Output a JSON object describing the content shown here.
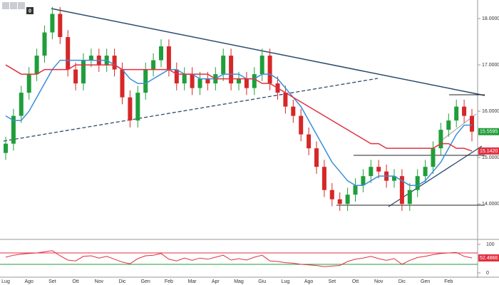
{
  "chart_data": {
    "type": "candlestick",
    "toolbar_badge": "0",
    "categories": [
      "Lug",
      null,
      null,
      "Ago",
      null,
      null,
      "Set",
      null,
      null,
      "Ott",
      null,
      null,
      "Nov",
      null,
      null,
      "Dic",
      null,
      null,
      "Gen",
      null,
      null,
      "Feb",
      null,
      null,
      "Mar",
      null,
      null,
      "Apr",
      null,
      null,
      "Mag",
      null,
      null,
      "Giu",
      null,
      null,
      "Lug",
      null,
      null,
      "Ago",
      null,
      null,
      "Set",
      null,
      null,
      "Ott",
      null,
      null,
      "Nov",
      null,
      null,
      "Dic",
      null,
      null,
      "Gen",
      null,
      null,
      "Feb",
      null,
      null,
      null
    ],
    "open": [
      15.1,
      15.3,
      15.9,
      16.4,
      16.8,
      17.2,
      17.7,
      18.1,
      17.6,
      16.9,
      16.6,
      17.1,
      17.2,
      17.0,
      17.2,
      16.9,
      16.3,
      15.8,
      16.4,
      16.9,
      17.1,
      17.4,
      16.9,
      16.6,
      16.8,
      16.5,
      16.7,
      16.6,
      16.8,
      17.2,
      16.6,
      16.7,
      16.5,
      16.8,
      17.2,
      16.6,
      16.4,
      16.1,
      15.9,
      15.5,
      15.2,
      14.8,
      14.3,
      14.1,
      14.0,
      14.2,
      14.4,
      14.6,
      14.8,
      14.7,
      14.5,
      14.6,
      14.0,
      14.3,
      14.6,
      14.8,
      15.2,
      15.6,
      15.8,
      16.1,
      15.9
    ],
    "high": [
      15.45,
      16.05,
      16.55,
      16.95,
      17.35,
      17.85,
      18.25,
      18.25,
      17.75,
      17.05,
      17.25,
      17.35,
      17.35,
      17.35,
      17.35,
      17.05,
      16.45,
      16.55,
      17.05,
      17.25,
      17.55,
      17.55,
      17.05,
      16.95,
      16.95,
      16.85,
      16.85,
      16.95,
      17.35,
      17.35,
      16.85,
      16.85,
      16.95,
      17.35,
      17.35,
      16.75,
      16.55,
      16.25,
      16.05,
      15.65,
      15.35,
      14.95,
      14.45,
      14.25,
      14.35,
      14.55,
      14.75,
      14.95,
      14.95,
      14.85,
      14.75,
      14.75,
      14.45,
      14.75,
      14.95,
      15.35,
      15.75,
      15.95,
      16.25,
      16.25,
      16.05
    ],
    "low": [
      14.95,
      15.15,
      15.75,
      16.25,
      16.65,
      17.05,
      17.55,
      17.45,
      16.75,
      16.45,
      16.45,
      16.95,
      16.85,
      16.85,
      16.75,
      16.15,
      15.65,
      15.65,
      16.25,
      16.75,
      16.95,
      16.75,
      16.45,
      16.45,
      16.35,
      16.35,
      16.45,
      16.45,
      16.65,
      16.45,
      16.45,
      16.35,
      16.35,
      16.65,
      16.45,
      16.25,
      15.95,
      15.75,
      15.35,
      15.05,
      14.65,
      14.15,
      13.95,
      13.85,
      13.85,
      14.05,
      14.25,
      14.45,
      14.55,
      14.35,
      14.35,
      13.85,
      13.85,
      14.15,
      14.45,
      14.65,
      15.05,
      15.45,
      15.65,
      15.75,
      15.35
    ],
    "close": [
      15.3,
      15.9,
      16.4,
      16.8,
      17.2,
      17.7,
      18.1,
      17.6,
      16.9,
      16.6,
      17.1,
      17.2,
      17.0,
      17.2,
      16.9,
      16.3,
      15.8,
      16.4,
      16.9,
      17.1,
      17.4,
      16.9,
      16.6,
      16.8,
      16.5,
      16.7,
      16.6,
      16.8,
      17.2,
      16.6,
      16.7,
      16.5,
      16.8,
      17.2,
      16.6,
      16.4,
      16.1,
      15.9,
      15.5,
      15.2,
      14.8,
      14.3,
      14.1,
      14.0,
      14.2,
      14.4,
      14.6,
      14.8,
      14.7,
      14.5,
      14.6,
      14.0,
      14.3,
      14.6,
      14.8,
      15.2,
      15.6,
      15.8,
      16.1,
      15.9,
      15.5595
    ],
    "up_color": "#1f9e3a",
    "down_color": "#d62728",
    "series": [
      {
        "color": "#3a8fd9",
        "values": [
          15.9,
          15.8,
          15.8,
          16.0,
          16.3,
          16.6,
          16.9,
          17.1,
          17.1,
          17.1,
          17.1,
          17.1,
          17.1,
          17.1,
          17.0,
          16.9,
          16.7,
          16.6,
          16.6,
          16.7,
          16.8,
          16.9,
          16.9,
          16.8,
          16.8,
          16.7,
          16.7,
          16.7,
          16.8,
          16.8,
          16.8,
          16.7,
          16.7,
          16.8,
          16.8,
          16.7,
          16.5,
          16.3,
          16.1,
          15.8,
          15.5,
          15.2,
          14.9,
          14.7,
          14.5,
          14.4,
          14.4,
          14.5,
          14.6,
          14.6,
          14.6,
          14.5,
          14.4,
          14.4,
          14.5,
          14.7,
          14.9,
          15.2,
          15.5,
          15.7,
          15.7
        ]
      },
      {
        "color": "#e03040",
        "last_label": "15.1420",
        "values": [
          17.0,
          16.9,
          16.8,
          16.8,
          16.8,
          16.9,
          16.9,
          16.9,
          16.9,
          17.0,
          17.0,
          17.0,
          17.0,
          17.0,
          17.0,
          16.9,
          16.9,
          16.9,
          16.9,
          16.9,
          16.9,
          16.9,
          16.8,
          16.8,
          16.8,
          16.8,
          16.8,
          16.7,
          16.7,
          16.7,
          16.7,
          16.7,
          16.7,
          16.6,
          16.6,
          16.5,
          16.4,
          16.3,
          16.2,
          16.1,
          16.0,
          15.9,
          15.8,
          15.7,
          15.6,
          15.5,
          15.4,
          15.3,
          15.3,
          15.2,
          15.2,
          15.2,
          15.2,
          15.2,
          15.2,
          15.2,
          15.3,
          15.3,
          15.2,
          15.2,
          15.142
        ]
      }
    ],
    "ylim": [
      13.25,
      18.4
    ],
    "yticks": [
      {
        "value": 14,
        "label": "14.0000"
      },
      {
        "value": 15,
        "label": "15.0000"
      },
      {
        "value": 16,
        "label": "16.0000"
      },
      {
        "value": 17,
        "label": "17.0000"
      },
      {
        "value": 18,
        "label": "18.0000"
      }
    ],
    "rsi": {
      "color": "#e03040",
      "values": [
        55,
        62,
        66,
        68,
        70,
        74,
        78,
        60,
        45,
        42,
        58,
        60,
        52,
        58,
        48,
        38,
        32,
        50,
        60,
        62,
        68,
        48,
        42,
        52,
        44,
        52,
        48,
        55,
        62,
        45,
        50,
        45,
        55,
        62,
        42,
        40,
        36,
        34,
        30,
        28,
        26,
        22,
        24,
        26,
        40,
        48,
        52,
        58,
        50,
        44,
        50,
        30,
        44,
        54,
        58,
        64,
        68,
        70,
        72,
        58,
        52.4866
      ],
      "ylim": [
        0,
        100
      ],
      "yticks": [
        0,
        100
      ],
      "levels": [
        {
          "value": 70,
          "color": "#e03040"
        },
        {
          "value": 30,
          "color": "#1f9e3a"
        }
      ]
    }
  }
}
